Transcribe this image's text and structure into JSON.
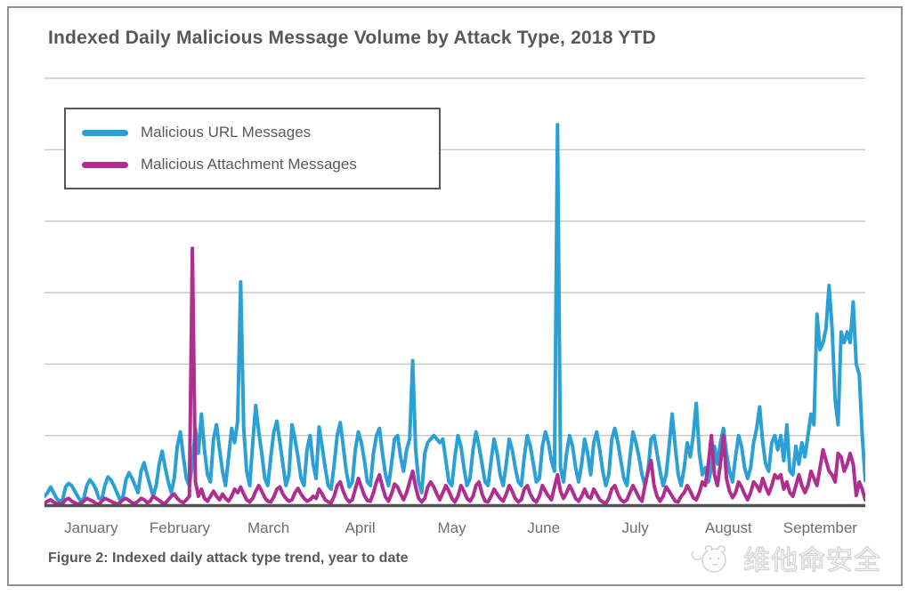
{
  "header": {
    "title": "Indexed Daily Malicious Message Volume by Attack Type, 2018 YTD"
  },
  "legend": {
    "items": [
      {
        "label": "Malicious URL Messages",
        "color": "#2BA0D4"
      },
      {
        "label": "Malicious Attachment Messages",
        "color": "#B02E90"
      }
    ]
  },
  "caption": "Figure 2: Indexed daily attack type trend, year to date",
  "watermark": {
    "logo": "mascot-logo",
    "text": "维他命安全"
  },
  "colors": {
    "title_text": "#57585b",
    "month_label_text": "#6d6e71",
    "gridline": "#bcbec0",
    "axis": "#4d4f53",
    "panel_border": "#8e9093",
    "legend_border": "#55575a",
    "url_series": "#2BA0D4",
    "attachment_series": "#B02E90"
  },
  "chart_data": {
    "type": "line",
    "title": "Indexed Daily Malicious Message Volume by Attack Type, 2018 YTD",
    "xlabel": "",
    "ylabel": "",
    "x_unit": "day of 2018, January 1 through September 30",
    "categories": [
      "January",
      "February",
      "March",
      "April",
      "May",
      "June",
      "July",
      "August",
      "September"
    ],
    "days_per_month": [
      31,
      28,
      31,
      30,
      31,
      30,
      31,
      31,
      30
    ],
    "ylim": [
      0,
      6
    ],
    "y_gridline_interval": 1,
    "y_tick_labels_visible": false,
    "grid": "horizontal",
    "legend_position": "top-left-inside",
    "series": [
      {
        "name": "Malicious URL Messages",
        "color": "#2BA0D4",
        "values": [
          0.15,
          0.2,
          0.28,
          0.2,
          0.12,
          0.08,
          0.1,
          0.28,
          0.33,
          0.3,
          0.22,
          0.15,
          0.08,
          0.12,
          0.3,
          0.38,
          0.33,
          0.25,
          0.12,
          0.1,
          0.3,
          0.42,
          0.38,
          0.3,
          0.2,
          0.1,
          0.15,
          0.38,
          0.48,
          0.4,
          0.3,
          0.2,
          0.5,
          0.62,
          0.45,
          0.3,
          0.15,
          0.3,
          0.6,
          0.78,
          0.55,
          0.35,
          0.2,
          0.4,
          0.85,
          1.05,
          0.7,
          0.4,
          0.3,
          0.6,
          1.1,
          0.75,
          1.3,
          0.8,
          0.45,
          0.35,
          0.95,
          1.15,
          0.8,
          0.5,
          0.3,
          0.7,
          1.1,
          0.9,
          1.2,
          3.15,
          1.1,
          0.5,
          0.3,
          0.9,
          1.42,
          1.05,
          0.75,
          0.4,
          0.3,
          0.7,
          1.05,
          1.2,
          0.9,
          0.6,
          0.3,
          0.45,
          1.15,
          0.95,
          0.7,
          0.4,
          0.3,
          0.8,
          1.0,
          0.6,
          0.4,
          1.12,
          0.85,
          0.55,
          0.3,
          0.25,
          0.6,
          1.0,
          1.18,
          0.85,
          0.5,
          0.28,
          0.35,
          0.8,
          1.05,
          0.9,
          0.65,
          0.35,
          0.3,
          0.75,
          1.0,
          1.1,
          0.75,
          0.45,
          0.3,
          0.6,
          0.95,
          1.0,
          0.7,
          0.5,
          0.8,
          0.95,
          2.05,
          0.8,
          0.35,
          0.2,
          0.75,
          0.9,
          0.95,
          1.0,
          0.95,
          0.9,
          0.95,
          0.65,
          0.35,
          0.3,
          0.7,
          1.0,
          0.85,
          0.55,
          0.3,
          0.4,
          0.8,
          1.05,
          0.85,
          0.6,
          0.35,
          0.3,
          0.65,
          0.95,
          0.75,
          0.45,
          0.3,
          0.6,
          0.95,
          0.8,
          0.55,
          0.35,
          0.3,
          0.7,
          1.0,
          0.85,
          0.6,
          0.35,
          0.4,
          0.85,
          1.05,
          0.9,
          0.65,
          0.5,
          5.35,
          0.55,
          0.35,
          0.75,
          1.0,
          0.85,
          0.55,
          0.35,
          0.6,
          0.95,
          0.75,
          0.45,
          0.9,
          1.05,
          0.8,
          0.5,
          0.3,
          0.45,
          0.95,
          1.1,
          0.9,
          0.65,
          0.4,
          0.3,
          0.7,
          1.05,
          0.9,
          0.7,
          0.45,
          0.3,
          0.5,
          0.95,
          1.0,
          0.75,
          0.5,
          0.3,
          0.45,
          0.85,
          1.3,
          0.85,
          0.45,
          0.3,
          0.55,
          0.9,
          0.7,
          1.0,
          1.45,
          0.75,
          0.45,
          0.55,
          0.35,
          0.55,
          0.85,
          0.6,
          0.9,
          1.1,
          0.75,
          0.5,
          0.35,
          0.7,
          1.0,
          0.85,
          0.55,
          0.4,
          0.55,
          0.9,
          1.1,
          1.4,
          0.9,
          0.6,
          0.5,
          0.9,
          1.0,
          0.8,
          1.0,
          0.65,
          1.15,
          0.5,
          0.45,
          0.85,
          0.6,
          0.9,
          0.7,
          1.0,
          1.3,
          1.15,
          2.7,
          2.2,
          2.3,
          2.5,
          3.1,
          2.5,
          1.5,
          1.15,
          2.45,
          2.3,
          2.45,
          2.3,
          2.87,
          2.0,
          1.85,
          1.0,
          0.37
        ]
      },
      {
        "name": "Malicious Attachment Messages",
        "color": "#B02E90",
        "values": [
          0.05,
          0.08,
          0.1,
          0.07,
          0.05,
          0.04,
          0.05,
          0.1,
          0.12,
          0.08,
          0.06,
          0.04,
          0.05,
          0.08,
          0.12,
          0.1,
          0.08,
          0.05,
          0.04,
          0.08,
          0.12,
          0.1,
          0.08,
          0.06,
          0.04,
          0.06,
          0.1,
          0.12,
          0.09,
          0.06,
          0.05,
          0.08,
          0.12,
          0.1,
          0.06,
          0.08,
          0.15,
          0.12,
          0.09,
          0.06,
          0.05,
          0.1,
          0.15,
          0.18,
          0.12,
          0.08,
          0.06,
          0.1,
          0.15,
          3.62,
          0.35,
          0.15,
          0.25,
          0.12,
          0.08,
          0.15,
          0.22,
          0.15,
          0.1,
          0.18,
          0.12,
          0.08,
          0.15,
          0.25,
          0.2,
          0.28,
          0.18,
          0.1,
          0.07,
          0.12,
          0.22,
          0.3,
          0.22,
          0.13,
          0.08,
          0.07,
          0.14,
          0.25,
          0.28,
          0.18,
          0.12,
          0.08,
          0.1,
          0.2,
          0.26,
          0.18,
          0.12,
          0.08,
          0.1,
          0.15,
          0.12,
          0.25,
          0.18,
          0.1,
          0.07,
          0.06,
          0.15,
          0.3,
          0.35,
          0.22,
          0.12,
          0.07,
          0.1,
          0.25,
          0.4,
          0.28,
          0.16,
          0.09,
          0.08,
          0.2,
          0.35,
          0.45,
          0.28,
          0.14,
          0.08,
          0.18,
          0.32,
          0.28,
          0.18,
          0.1,
          0.2,
          0.35,
          0.5,
          0.28,
          0.12,
          0.07,
          0.12,
          0.28,
          0.35,
          0.28,
          0.18,
          0.1,
          0.2,
          0.3,
          0.22,
          0.12,
          0.07,
          0.15,
          0.3,
          0.22,
          0.12,
          0.08,
          0.15,
          0.3,
          0.35,
          0.18,
          0.08,
          0.07,
          0.15,
          0.25,
          0.18,
          0.12,
          0.08,
          0.18,
          0.3,
          0.22,
          0.12,
          0.07,
          0.1,
          0.25,
          0.3,
          0.18,
          0.1,
          0.07,
          0.15,
          0.3,
          0.22,
          0.15,
          0.1,
          0.28,
          0.45,
          0.22,
          0.12,
          0.2,
          0.3,
          0.22,
          0.12,
          0.08,
          0.15,
          0.25,
          0.15,
          0.12,
          0.25,
          0.18,
          0.1,
          0.07,
          0.05,
          0.12,
          0.25,
          0.3,
          0.18,
          0.1,
          0.07,
          0.1,
          0.2,
          0.3,
          0.22,
          0.13,
          0.08,
          0.3,
          0.5,
          0.65,
          0.3,
          0.15,
          0.08,
          0.15,
          0.28,
          0.22,
          0.15,
          0.08,
          0.07,
          0.15,
          0.2,
          0.3,
          0.22,
          0.13,
          0.1,
          0.2,
          0.35,
          0.3,
          0.6,
          1.0,
          0.45,
          0.3,
          0.6,
          1.0,
          0.4,
          0.22,
          0.13,
          0.2,
          0.35,
          0.28,
          0.18,
          0.1,
          0.2,
          0.35,
          0.3,
          0.22,
          0.4,
          0.28,
          0.18,
          0.3,
          0.45,
          0.4,
          0.45,
          0.25,
          0.35,
          0.2,
          0.15,
          0.3,
          0.45,
          0.3,
          0.2,
          0.3,
          0.5,
          0.4,
          0.3,
          0.55,
          0.8,
          0.65,
          0.5,
          0.45,
          0.35,
          0.75,
          0.7,
          0.5,
          0.6,
          0.75,
          0.6,
          0.16,
          0.35,
          0.25,
          0.1
        ]
      }
    ]
  }
}
